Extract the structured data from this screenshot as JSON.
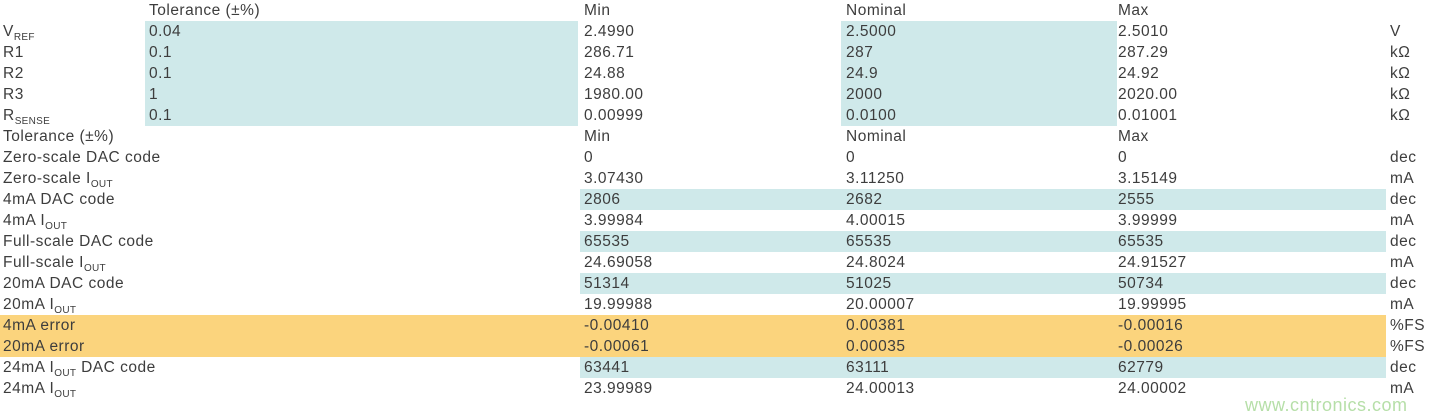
{
  "page": {
    "watermark": "www.cntronics.com"
  },
  "colors": {
    "highlight_blue": "#cfe9ea",
    "highlight_orange": "#fbd47d",
    "text": "#3d3d3d",
    "watermark_green": "#b6dfa8"
  },
  "columns": {
    "tolerance": "Tolerance (±%)",
    "min": "Min",
    "nominal": "Nominal",
    "max": "Max"
  },
  "table": {
    "rows": [
      {
        "type": "header1"
      },
      {
        "type": "sec1",
        "label": [
          {
            "t": "V"
          },
          {
            "t": "REF",
            "sub": true
          }
        ],
        "tol": "0.04",
        "min": "2.4990",
        "nominal": "2.5000",
        "max": "2.5010",
        "unit": "V"
      },
      {
        "type": "sec1",
        "label": [
          {
            "t": "R1"
          }
        ],
        "tol": "0.1",
        "min": "286.71",
        "nominal": "287",
        "max": "287.29",
        "unit": "kΩ"
      },
      {
        "type": "sec1",
        "label": [
          {
            "t": "R2"
          }
        ],
        "tol": "0.1",
        "min": "24.88",
        "nominal": "24.9",
        "max": "24.92",
        "unit": "kΩ"
      },
      {
        "type": "sec1",
        "label": [
          {
            "t": "R3"
          }
        ],
        "tol": "1",
        "min": "1980.00",
        "nominal": "2000",
        "max": "2020.00",
        "unit": "kΩ"
      },
      {
        "type": "sec1",
        "label": [
          {
            "t": "R"
          },
          {
            "t": "SENSE",
            "sub": true
          }
        ],
        "tol": "0.1",
        "min": "0.00999",
        "nominal": "0.0100",
        "max": "0.01001",
        "unit": "kΩ"
      },
      {
        "type": "header2"
      },
      {
        "type": "plain",
        "label": [
          {
            "t": "Zero-scale DAC code"
          }
        ],
        "min": "0",
        "nominal": "0",
        "max": "0",
        "unit": "dec"
      },
      {
        "type": "plain",
        "label": [
          {
            "t": "Zero-scale I"
          },
          {
            "t": "OUT",
            "sub": true
          }
        ],
        "min": "3.07430",
        "nominal": "3.11250",
        "max": "3.15149",
        "unit": "mA"
      },
      {
        "type": "dac",
        "label": [
          {
            "t": "4mA DAC code"
          }
        ],
        "min": "2806",
        "nominal": "2682",
        "max": "2555",
        "unit": "dec"
      },
      {
        "type": "plain",
        "label": [
          {
            "t": "4mA I"
          },
          {
            "t": "OUT",
            "sub": true
          }
        ],
        "min": "3.99984",
        "nominal": "4.00015",
        "max": "3.99999",
        "unit": "mA"
      },
      {
        "type": "dac",
        "label": [
          {
            "t": "Full-scale DAC code"
          }
        ],
        "min": "65535",
        "nominal": "65535",
        "max": "65535",
        "unit": "dec"
      },
      {
        "type": "plain",
        "label": [
          {
            "t": "Full-scale I"
          },
          {
            "t": "OUT",
            "sub": true
          }
        ],
        "min": "24.69058",
        "nominal": "24.8024",
        "max": "24.91527",
        "unit": "mA"
      },
      {
        "type": "dac",
        "label": [
          {
            "t": "20mA DAC code"
          }
        ],
        "min": "51314",
        "nominal": "51025",
        "max": "50734",
        "unit": "dec"
      },
      {
        "type": "plain",
        "label": [
          {
            "t": "20mA I"
          },
          {
            "t": "OUT",
            "sub": true
          }
        ],
        "min": "19.99988",
        "nominal": "20.00007",
        "max": "19.99995",
        "unit": "mA"
      },
      {
        "type": "error",
        "label": [
          {
            "t": "4mA error"
          }
        ],
        "min": "-0.00410",
        "nominal": "0.00381",
        "max": "-0.00016",
        "unit": "%FS"
      },
      {
        "type": "error",
        "label": [
          {
            "t": "20mA error"
          }
        ],
        "min": "-0.00061",
        "nominal": "0.00035",
        "max": "-0.00026",
        "unit": "%FS"
      },
      {
        "type": "dac",
        "label": [
          {
            "t": "24mA I"
          },
          {
            "t": "OUT",
            "sub": true
          },
          {
            "t": " DAC code"
          }
        ],
        "min": "63441",
        "nominal": "63111",
        "max": "62779",
        "unit": "dec"
      },
      {
        "type": "plain",
        "label": [
          {
            "t": "24mA I"
          },
          {
            "t": "OUT",
            "sub": true
          }
        ],
        "min": "23.99989",
        "nominal": "24.00013",
        "max": "24.00002",
        "unit": "mA"
      }
    ]
  }
}
